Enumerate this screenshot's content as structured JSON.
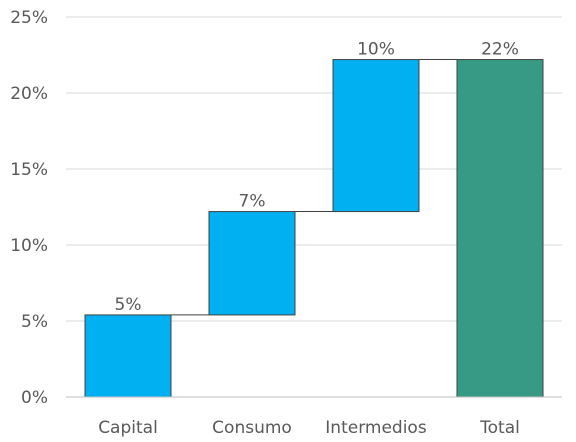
{
  "chart_data": {
    "type": "bar",
    "subtype": "waterfall",
    "categories": [
      "Capital",
      "Consumo",
      "Intermedios",
      "Total"
    ],
    "values": [
      5.4,
      6.8,
      10.0,
      22.2
    ],
    "data_labels": [
      "5%",
      "7%",
      "10%",
      "22%"
    ],
    "bar_kinds": [
      "increment",
      "increment",
      "increment",
      "total"
    ],
    "ylim": [
      0,
      25
    ],
    "y_ticks": [
      0,
      5,
      10,
      15,
      20,
      25
    ],
    "y_tick_labels": [
      "0%",
      "5%",
      "10%",
      "15%",
      "20%",
      "25%"
    ],
    "grid": true,
    "legend": "none",
    "colors": {
      "increment": "#00b0f0",
      "total": "#379a84",
      "bar_border": "#404040",
      "grid": "#d9d9d9",
      "axis": "#bfbfbf",
      "connector": "#404040"
    }
  }
}
